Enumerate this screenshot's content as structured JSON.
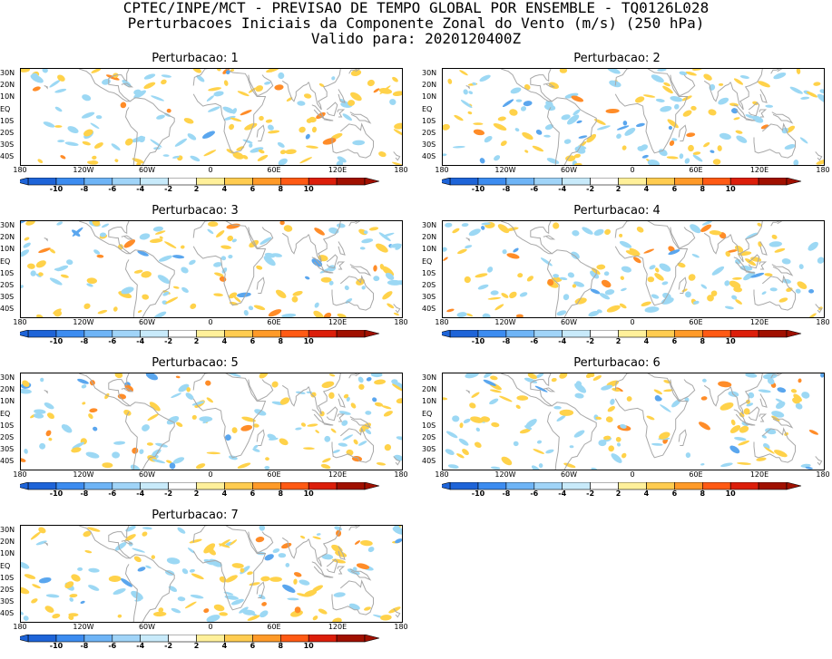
{
  "header": {
    "line1": "CPTEC/INPE/MCT - PREVISAO DE TEMPO GLOBAL POR ENSEMBLE - TQ0126L028",
    "line2": "Perturbacoes Iniciais da Componente Zonal do Vento (m/s) (250 hPa)",
    "line3": "Valido para: 2020120400Z"
  },
  "lat_labels": [
    "30N",
    "20N",
    "10N",
    "EQ",
    "10S",
    "20S",
    "30S",
    "40S"
  ],
  "lon_labels": [
    "180",
    "120W",
    "60W",
    "0",
    "60E",
    "120E",
    "180"
  ],
  "colorbar": {
    "ticks": [
      "-10",
      "-8",
      "-6",
      "-4",
      "-2",
      "2",
      "4",
      "6",
      "8",
      "10"
    ],
    "colors": [
      "#1e64d8",
      "#3c8cf0",
      "#6eb4f6",
      "#a0d4f8",
      "#c8eafa",
      "#ffffff",
      "#fff09a",
      "#ffcc50",
      "#ff9a28",
      "#ff5a14",
      "#dc1e0a",
      "#a01000"
    ]
  },
  "panels": [
    {
      "title": "Perturbacao: 1"
    },
    {
      "title": "Perturbacao: 2"
    },
    {
      "title": "Perturbacao: 3"
    },
    {
      "title": "Perturbacao: 4"
    },
    {
      "title": "Perturbacao: 5"
    },
    {
      "title": "Perturbacao: 6"
    },
    {
      "title": "Perturbacao: 7"
    }
  ],
  "colors": {
    "coast": "#a8a8a8",
    "positive": "#ffd24a",
    "negative": "#9cd8f4",
    "strong_positive": "#ff8c28",
    "strong_negative": "#5aa6ee"
  }
}
